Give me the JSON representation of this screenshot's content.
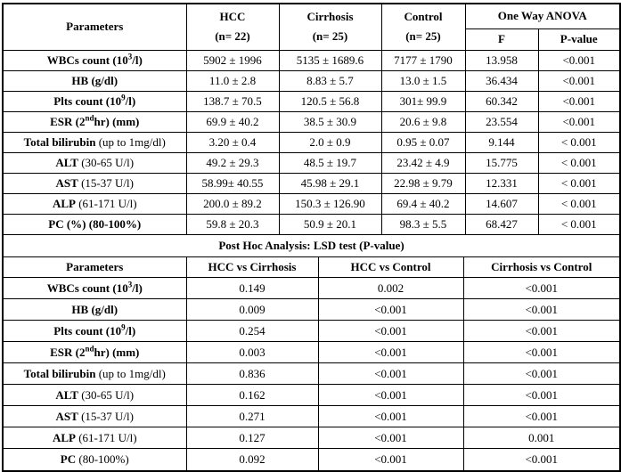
{
  "colors": {
    "border": "#000000",
    "text": "#000000",
    "background": "#ffffff"
  },
  "table1": {
    "header": {
      "parameters": "Parameters",
      "groups": [
        {
          "name": "HCC",
          "n": "(n= 22)"
        },
        {
          "name": "Cirrhosis",
          "n": "(n= 25)"
        },
        {
          "name": "Control",
          "n": "(n= 25)"
        }
      ],
      "anova_label": "One Way ANOVA",
      "anova_cols": [
        "F",
        "P-value"
      ]
    },
    "rows": [
      {
        "param": [
          {
            "t": "WBCs count (10",
            "b": true
          },
          {
            "t": "3",
            "b": true,
            "sup": true
          },
          {
            "t": "/l)",
            "b": true
          }
        ],
        "values": [
          "5902 ± 1996",
          "5135 ± 1689.6",
          "7177 ± 1790",
          "13.958",
          "<0.001"
        ]
      },
      {
        "param": [
          {
            "t": "HB (g/dl)",
            "b": true
          }
        ],
        "values": [
          "11.0 ± 2.8",
          "8.83 ± 5.7",
          "13.0 ± 1.5",
          "36.434",
          "<0.001"
        ]
      },
      {
        "param": [
          {
            "t": "Plts count (10",
            "b": true
          },
          {
            "t": "9",
            "b": true,
            "sup": true
          },
          {
            "t": "/l)",
            "b": true
          }
        ],
        "values": [
          "138.7 ± 70.5",
          "120.5 ± 56.8",
          "301± 99.9",
          "60.342",
          "<0.001"
        ]
      },
      {
        "param": [
          {
            "t": "ESR (2",
            "b": true
          },
          {
            "t": "nd",
            "b": true,
            "sup": true
          },
          {
            "t": "hr) (mm)",
            "b": true
          }
        ],
        "values": [
          "69.9 ± 40.2",
          "38.5 ± 30.9",
          "20.6 ± 9.8",
          "23.554",
          "<0.001"
        ]
      },
      {
        "param": [
          {
            "t": "Total bilirubin",
            "b": true
          },
          {
            "t": " (up to 1mg/dl)",
            "b": false
          }
        ],
        "values": [
          "3.20 ± 0.4",
          "2.0 ± 0.9",
          "0.95 ± 0.07",
          "9.144",
          "< 0.001"
        ]
      },
      {
        "param": [
          {
            "t": "ALT",
            "b": true
          },
          {
            "t": " (30-65 U/l)",
            "b": false
          }
        ],
        "values": [
          "49.2 ± 29.3",
          "48.5 ± 19.7",
          "23.42 ± 4.9",
          "15.775",
          "< 0.001"
        ]
      },
      {
        "param": [
          {
            "t": "AST",
            "b": true
          },
          {
            "t": " (15-37 U/l)",
            "b": false
          }
        ],
        "values": [
          "58.99± 40.55",
          "45.98 ± 29.1",
          "22.98 ± 9.79",
          "12.331",
          "< 0.001"
        ]
      },
      {
        "param": [
          {
            "t": "ALP",
            "b": true
          },
          {
            "t": " (61-171 U/l)",
            "b": false
          }
        ],
        "values": [
          "200.0 ± 89.2",
          "150.3 ± 126.90",
          "69.4 ± 40.2",
          "14.607",
          "< 0.001"
        ]
      },
      {
        "param": [
          {
            "t": "PC (%) (80-100%)",
            "b": true
          }
        ],
        "values": [
          "59.8 ± 20.3",
          "50.9 ± 20.1",
          "98.3 ± 5.5",
          "68.427",
          "< 0.001"
        ]
      }
    ]
  },
  "posthoc_title": "Post Hoc Analysis: LSD test (P-value)",
  "table2": {
    "header": [
      "Parameters",
      "HCC vs Cirrhosis",
      "HCC vs Control",
      "Cirrhosis vs Control"
    ],
    "rows": [
      {
        "param": [
          {
            "t": "WBCs count (10",
            "b": true
          },
          {
            "t": "3",
            "b": true,
            "sup": true
          },
          {
            "t": "/l)",
            "b": true
          }
        ],
        "values": [
          "0.149",
          "0.002",
          "<0.001"
        ]
      },
      {
        "param": [
          {
            "t": "HB (g/dl)",
            "b": true
          }
        ],
        "values": [
          "0.009",
          "<0.001",
          "<0.001"
        ]
      },
      {
        "param": [
          {
            "t": "Plts count (10",
            "b": true
          },
          {
            "t": "9",
            "b": true,
            "sup": true
          },
          {
            "t": "/l)",
            "b": true
          }
        ],
        "values": [
          "0.254",
          "<0.001",
          "<0.001"
        ]
      },
      {
        "param": [
          {
            "t": "ESR (2",
            "b": true
          },
          {
            "t": "nd",
            "b": true,
            "sup": true
          },
          {
            "t": "hr) (mm)",
            "b": true
          }
        ],
        "values": [
          "0.003",
          "<0.001",
          "<0.001"
        ]
      },
      {
        "param": [
          {
            "t": "Total bilirubin",
            "b": true
          },
          {
            "t": " (up to 1mg/dl)",
            "b": false
          }
        ],
        "values": [
          "0.836",
          "<0.001",
          "<0.001"
        ]
      },
      {
        "param": [
          {
            "t": "ALT",
            "b": true
          },
          {
            "t": " (30-65 U/l)",
            "b": false
          }
        ],
        "values": [
          "0.162",
          "<0.001",
          "<0.001"
        ]
      },
      {
        "param": [
          {
            "t": "AST",
            "b": true
          },
          {
            "t": " (15-37 U/l)",
            "b": false
          }
        ],
        "values": [
          "0.271",
          "<0.001",
          "<0.001"
        ]
      },
      {
        "param": [
          {
            "t": "ALP",
            "b": true
          },
          {
            "t": " (61-171 U/l)",
            "b": false
          }
        ],
        "values": [
          "0.127",
          "<0.001",
          "0.001"
        ]
      },
      {
        "param": [
          {
            "t": "PC",
            "b": true
          },
          {
            "t": " (80-100%)",
            "b": false
          }
        ],
        "values": [
          "0.092",
          "<0.001",
          "<0.001"
        ]
      }
    ]
  }
}
